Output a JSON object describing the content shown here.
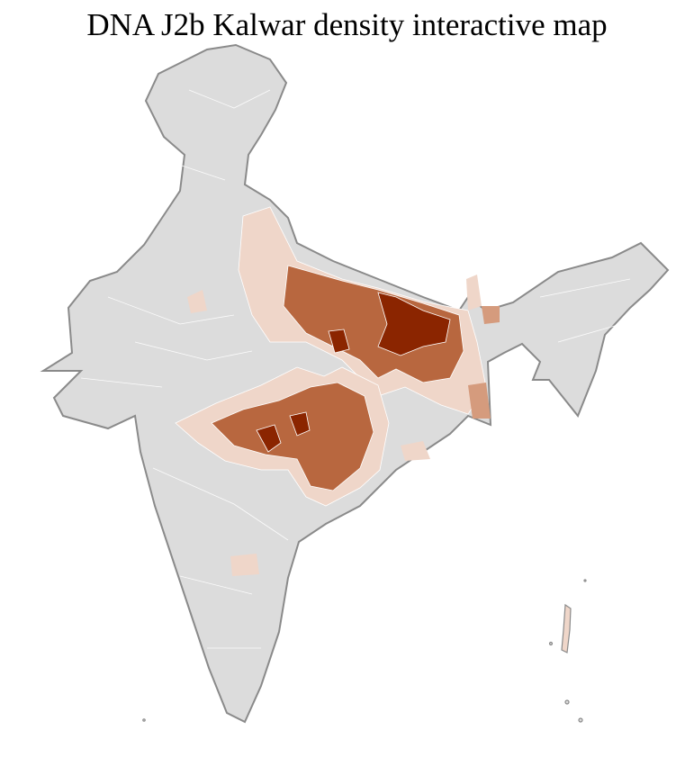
{
  "title": "DNA J2b Kalwar density interactive map",
  "colors": {
    "no_data": "#dcdcdc",
    "border": "#8a8a8a",
    "district_line": "#ffffff",
    "level_1": "#efd6c9",
    "level_2": "#d59b7d",
    "level_3": "#b8673f",
    "level_4": "#8b2500"
  }
}
